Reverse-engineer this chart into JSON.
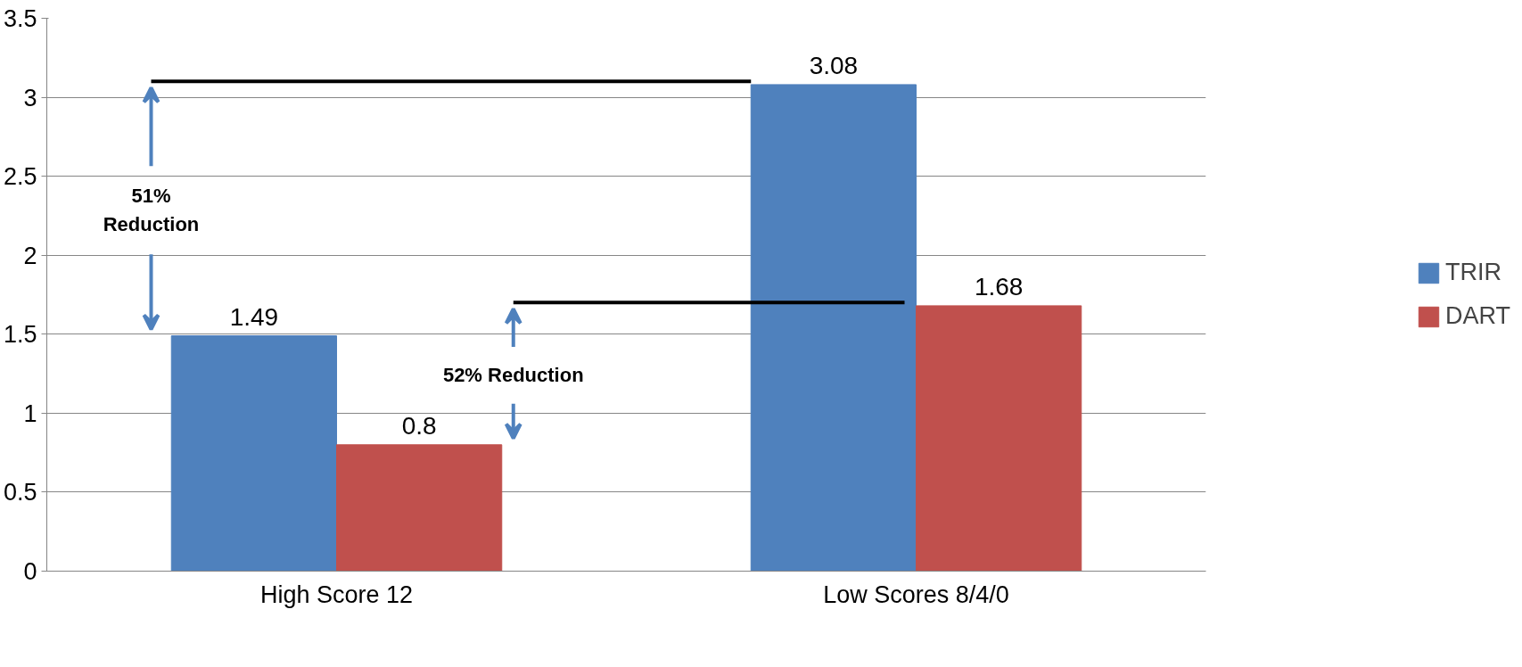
{
  "chart_data": {
    "type": "bar",
    "categories": [
      "High Score 12",
      "Low Scores 8/4/0"
    ],
    "series": [
      {
        "name": "TRIR",
        "color": "#4f81bd",
        "values": [
          1.49,
          3.08
        ]
      },
      {
        "name": "DART",
        "color": "#c0504d",
        "values": [
          0.8,
          1.68
        ]
      }
    ],
    "ylim": [
      0,
      3.5
    ],
    "yticks": [
      0,
      0.5,
      1,
      1.5,
      2,
      2.5,
      3,
      3.5
    ],
    "grid": "y",
    "legend": "right",
    "data_labels": true,
    "ref_lines": [
      {
        "axis": "y",
        "value": 3.1,
        "color": "#000000"
      },
      {
        "axis": "y",
        "value": 1.7,
        "color": "#000000"
      }
    ],
    "annotations": [
      "51%\nReduction",
      "52% Reduction"
    ]
  }
}
